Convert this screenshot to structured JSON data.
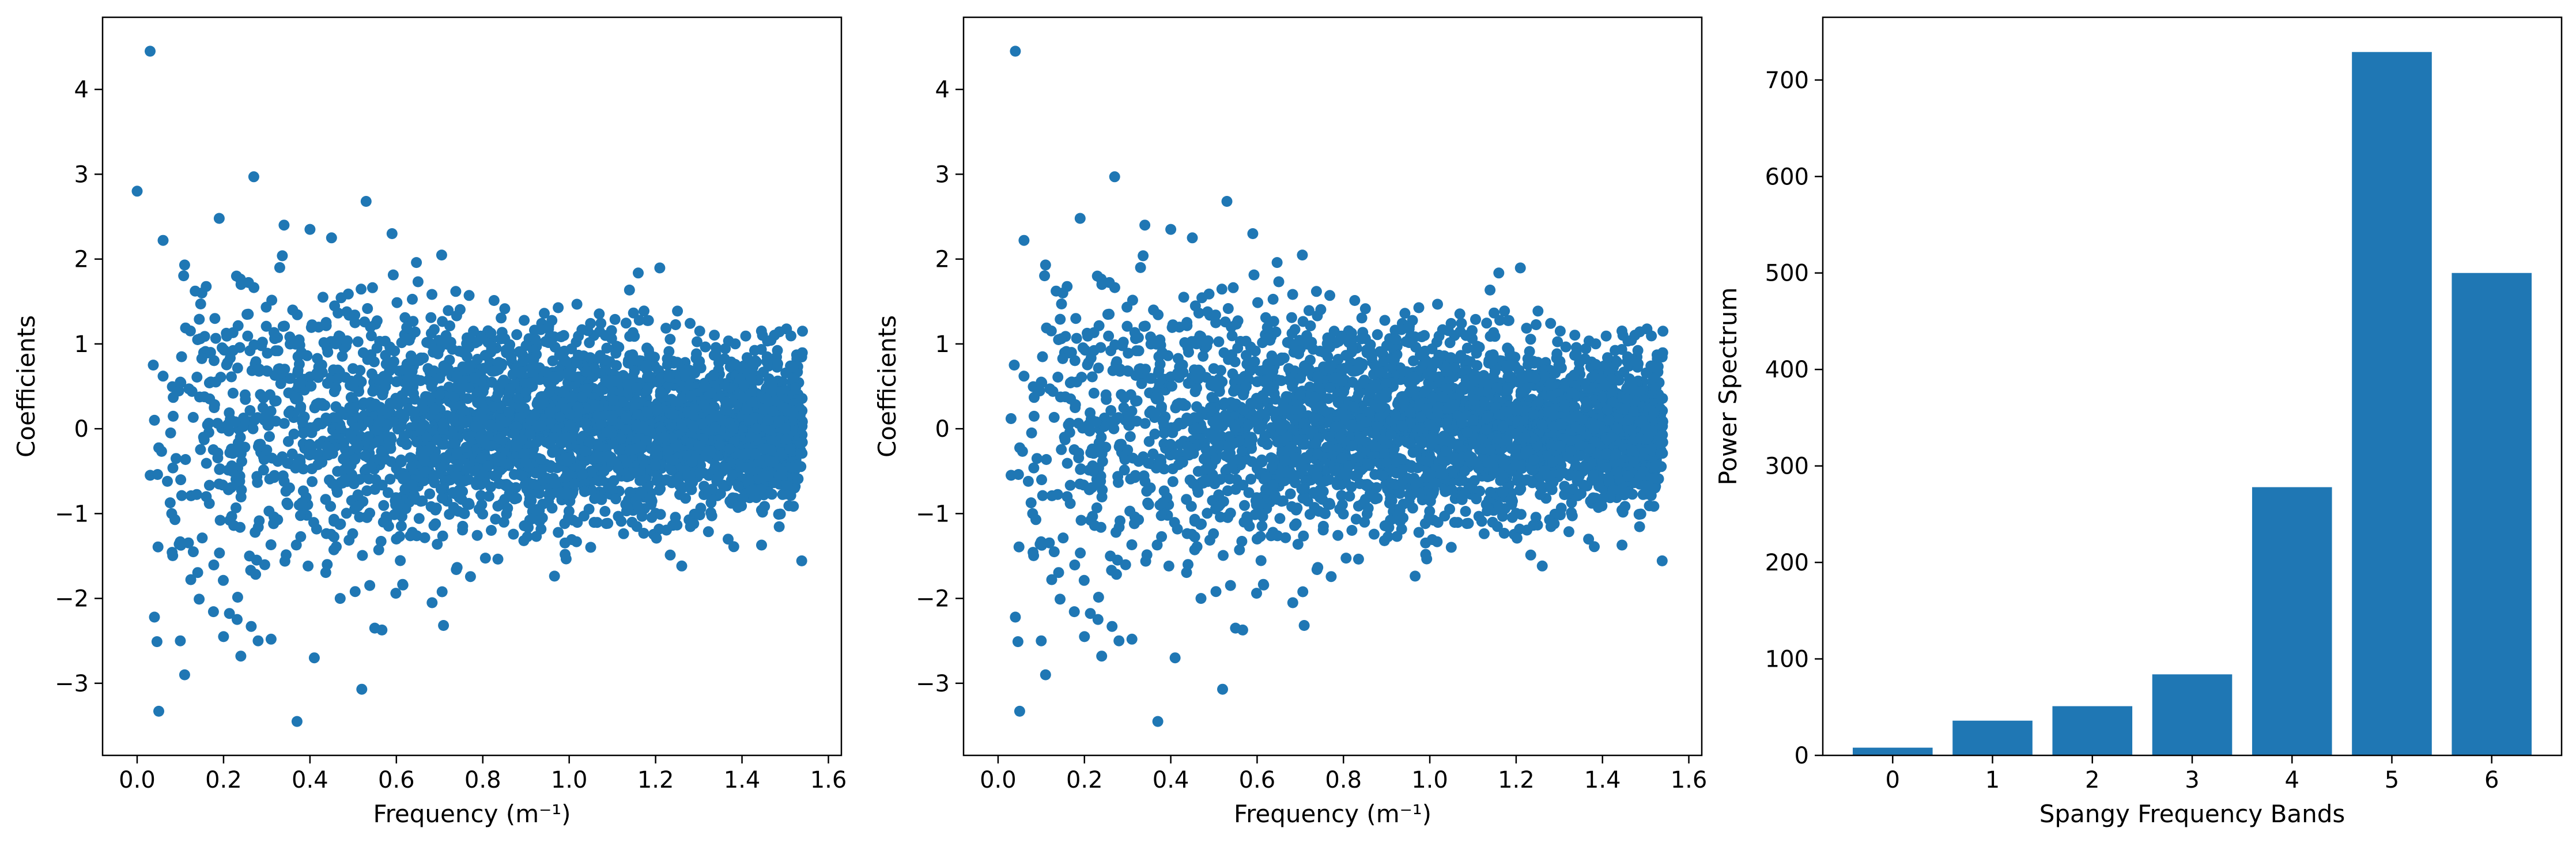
{
  "colors": {
    "series": "#1f77b4",
    "axis": "#000000",
    "background": "#ffffff"
  },
  "chart_data": [
    {
      "type": "scatter",
      "xlabel": "Frequency (m⁻¹)",
      "ylabel": "Coefficients",
      "xlim": [
        -0.08,
        1.63
      ],
      "ylim": [
        -3.85,
        4.85
      ],
      "xticks": [
        0.0,
        0.2,
        0.4,
        0.6,
        0.8,
        1.0,
        1.2,
        1.4,
        1.6
      ],
      "xtick_labels": [
        "0.0",
        "0.2",
        "0.4",
        "0.6",
        "0.8",
        "1.0",
        "1.2",
        "1.4",
        "1.6"
      ],
      "yticks": [
        -3,
        -2,
        -1,
        0,
        1,
        2,
        3,
        4
      ],
      "ytick_labels": [
        "−3",
        "−2",
        "−1",
        "0",
        "1",
        "2",
        "3",
        "4"
      ],
      "grid": false,
      "points": {
        "x": [
          0.0,
          0.03,
          0.04,
          0.04,
          0.05,
          0.06,
          0.06,
          0.07,
          0.08,
          0.09,
          0.1,
          0.1,
          0.11,
          0.11,
          0.12,
          0.13,
          0.14,
          0.15,
          0.16,
          0.17,
          0.18,
          0.19,
          0.2,
          0.21,
          0.22,
          0.23,
          0.24,
          0.25,
          0.26,
          0.27,
          0.28,
          0.29,
          0.3,
          0.31,
          0.33,
          0.34,
          0.35,
          0.36,
          0.37,
          0.38,
          0.4,
          0.41,
          0.42,
          0.43,
          0.44,
          0.45,
          0.46,
          0.47,
          0.48,
          0.5,
          0.52,
          0.53,
          0.54,
          0.55,
          0.57,
          0.59,
          0.6,
          0.62,
          0.64,
          0.66,
          0.68,
          0.7,
          0.74,
          0.78,
          0.82,
          0.86,
          0.9,
          0.94,
          0.98,
          1.02,
          1.06,
          1.1,
          1.14,
          1.18,
          1.22,
          1.26,
          1.3,
          1.34,
          1.38,
          1.42,
          1.46,
          1.5,
          1.54
        ],
        "y": [
          2.8,
          4.45,
          -2.22,
          0.1,
          -3.33,
          0.62,
          2.22,
          -0.62,
          -1.0,
          -0.35,
          0.55,
          -2.5,
          -2.9,
          1.93,
          0.47,
          -1.45,
          1.05,
          1.6,
          -0.8,
          0.9,
          1.3,
          2.48,
          -2.45,
          0.05,
          -0.5,
          1.8,
          -2.68,
          0.4,
          -1.5,
          2.97,
          -2.5,
          1.02,
          -0.25,
          -2.48,
          1.9,
          2.4,
          -0.15,
          1.4,
          -3.45,
          0.9,
          2.35,
          -2.7,
          0.3,
          1.55,
          -1.6,
          2.25,
          1.0,
          -2.0,
          -0.6,
          0.5,
          -3.07,
          2.68,
          1.2,
          -2.35,
          -1.1,
          2.3,
          -1.3,
          0.7,
          0.2,
          -0.85,
          1.0,
          0.4,
          -0.3,
          0.6,
          -0.2,
          0.2,
          -0.4,
          0.3,
          -0.15,
          0.25,
          -0.35,
          0.1,
          -0.25,
          0.2,
          -0.1,
          0.05,
          -0.2,
          0.15,
          0.0,
          -0.1,
          0.1,
          0.0,
          1.15
        ]
      }
    },
    {
      "type": "scatter",
      "xlabel": "Frequency (m⁻¹)",
      "ylabel": "Coefficients",
      "xlim": [
        -0.08,
        1.63
      ],
      "ylim": [
        -3.85,
        4.85
      ],
      "xticks": [
        0.0,
        0.2,
        0.4,
        0.6,
        0.8,
        1.0,
        1.2,
        1.4,
        1.6
      ],
      "xtick_labels": [
        "0.0",
        "0.2",
        "0.4",
        "0.6",
        "0.8",
        "1.0",
        "1.2",
        "1.4",
        "1.6"
      ],
      "yticks": [
        -3,
        -2,
        -1,
        0,
        1,
        2,
        3,
        4
      ],
      "ytick_labels": [
        "−3",
        "−2",
        "−1",
        "0",
        "1",
        "2",
        "3",
        "4"
      ],
      "grid": false,
      "points": {
        "x": [
          0.03,
          0.04,
          0.04,
          0.05,
          0.06,
          0.06,
          0.07,
          0.08,
          0.09,
          0.1,
          0.1,
          0.11,
          0.11,
          0.12,
          0.13,
          0.14,
          0.15,
          0.16,
          0.17,
          0.18,
          0.19,
          0.2,
          0.21,
          0.22,
          0.23,
          0.24,
          0.25,
          0.26,
          0.27,
          0.28,
          0.29,
          0.3,
          0.31,
          0.33,
          0.34,
          0.35,
          0.36,
          0.37,
          0.38,
          0.4,
          0.41,
          0.42,
          0.43,
          0.44,
          0.45,
          0.46,
          0.47,
          0.48,
          0.5,
          0.52,
          0.53,
          0.54,
          0.55,
          0.57,
          0.59,
          0.6,
          0.62,
          0.64,
          0.66,
          0.68,
          0.7,
          0.74,
          0.78,
          0.82,
          0.86,
          0.9,
          0.94,
          0.98,
          1.02,
          1.06,
          1.1,
          1.14,
          1.18,
          1.22,
          1.26,
          1.3,
          1.34,
          1.38,
          1.42,
          1.46,
          1.5,
          1.54
        ],
        "y": [
          0.12,
          4.45,
          -2.22,
          -3.33,
          0.62,
          2.22,
          -0.62,
          -1.0,
          -0.35,
          0.55,
          -2.5,
          -2.9,
          1.93,
          0.47,
          -1.45,
          1.05,
          1.6,
          -0.8,
          0.9,
          1.3,
          2.48,
          -2.45,
          0.05,
          -0.5,
          1.8,
          -2.68,
          0.4,
          -1.5,
          2.97,
          -2.5,
          1.02,
          -0.25,
          -2.48,
          1.9,
          2.4,
          -0.15,
          1.4,
          -3.45,
          0.9,
          2.35,
          -2.7,
          0.3,
          1.55,
          -1.6,
          2.25,
          1.0,
          -2.0,
          -0.6,
          0.5,
          -3.07,
          2.68,
          1.2,
          -2.35,
          -1.1,
          2.3,
          -1.3,
          0.7,
          0.2,
          -0.85,
          1.0,
          0.4,
          -0.3,
          0.6,
          -0.2,
          0.2,
          -0.4,
          0.3,
          -0.15,
          0.25,
          -0.35,
          0.1,
          -0.25,
          0.2,
          -0.1,
          0.05,
          -0.2,
          0.15,
          0.0,
          -0.1,
          0.1,
          0.0,
          1.15
        ]
      }
    },
    {
      "type": "bar",
      "xlabel": "Spangy Frequency Bands",
      "ylabel": "Power Spectrum",
      "categories": [
        "0",
        "1",
        "2",
        "3",
        "4",
        "5",
        "6"
      ],
      "values": [
        8,
        36,
        51,
        84,
        278,
        729,
        500
      ],
      "ylim": [
        0,
        765
      ],
      "yticks": [
        0,
        100,
        200,
        300,
        400,
        500,
        600,
        700
      ],
      "ytick_labels": [
        "0",
        "100",
        "200",
        "300",
        "400",
        "500",
        "600",
        "700"
      ],
      "grid": false
    }
  ]
}
